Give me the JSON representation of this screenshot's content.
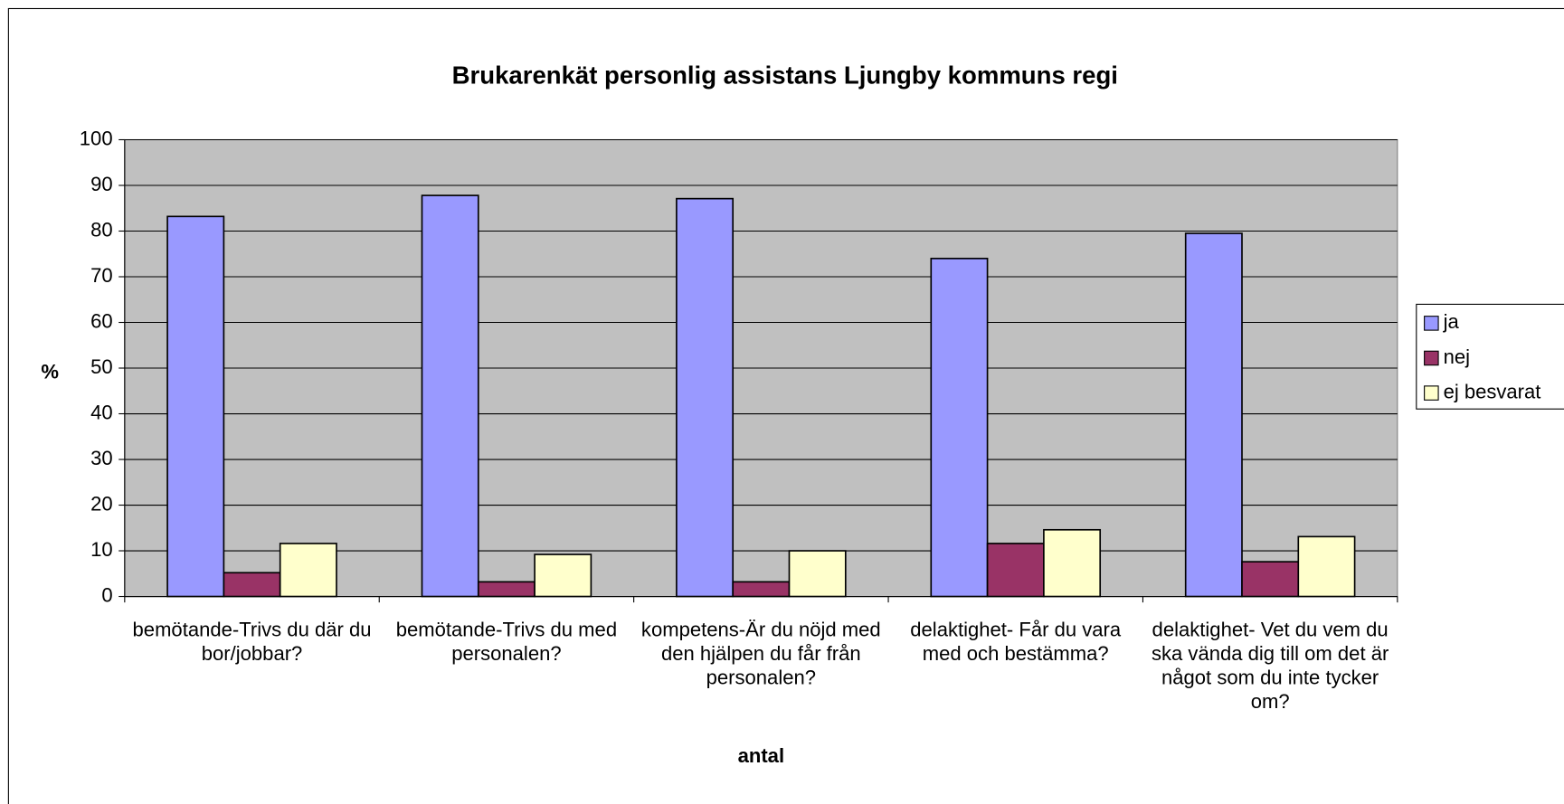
{
  "chart_data": {
    "type": "bar",
    "title": "Brukarenkät personlig assistans Ljungby kommuns regi",
    "x_label": "antal",
    "y_label": "%",
    "categories": [
      "bemötande-Trivs du där du bor/jobbar?",
      "bemötande-Trivs du med personalen?",
      "kompetens-Är du nöjd med den hjälpen du får från personalen?",
      "delaktighet- Får du vara med och bestämma?",
      "delaktighet- Vet du vem du ska vända dig till om det är något som du inte tycker om?"
    ],
    "series": [
      {
        "name": "ja",
        "color": "#9999ff",
        "values": [
          83.2,
          87.8,
          87.1,
          74,
          79.5
        ]
      },
      {
        "name": "nej",
        "color": "#993366",
        "values": [
          5.2,
          3.2,
          3.2,
          11.6,
          7.6
        ]
      },
      {
        "name": "ej besvarat",
        "color": "#ffffcc",
        "values": [
          11.6,
          9.2,
          10,
          14.6,
          13.1
        ]
      }
    ],
    "ylim": [
      0,
      100
    ],
    "yticks": [
      0,
      10,
      20,
      30,
      40,
      50,
      60,
      70,
      80,
      90,
      100
    ],
    "grid": true,
    "legend": "right",
    "plot_background": "#c0c0c0"
  }
}
